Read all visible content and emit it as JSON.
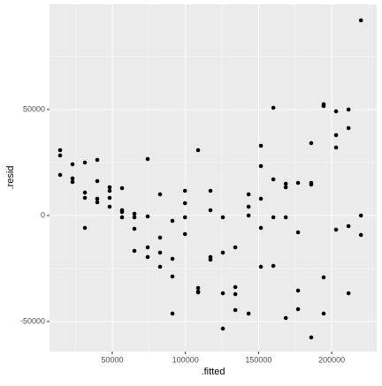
{
  "chart_data": {
    "type": "scatter",
    "x_label": ".fitted",
    "y_label": ".resid",
    "x": [
      14330,
      14330,
      14330,
      22790,
      22790,
      22790,
      31260,
      31260,
      31260,
      31260,
      39720,
      39720,
      39720,
      39720,
      48190,
      48190,
      48190,
      48190,
      56650,
      56650,
      56650,
      56650,
      65120,
      65120,
      65120,
      65120,
      74190,
      74190,
      74190,
      74190,
      82650,
      82650,
      82650,
      82650,
      91120,
      91120,
      91120,
      91120,
      99700,
      99700,
      99700,
      99700,
      108670,
      108670,
      108670,
      108670,
      117100,
      117100,
      117100,
      117100,
      125600,
      125600,
      125600,
      125600,
      134100,
      134100,
      134100,
      134100,
      143180,
      143180,
      143180,
      143180,
      151600,
      151600,
      151600,
      151600,
      151600,
      160100,
      160100,
      160100,
      160100,
      168600,
      168600,
      168600,
      168600,
      177000,
      177000,
      177000,
      177000,
      186000,
      186000,
      186000,
      186000,
      194500,
      194500,
      194500,
      194500,
      203000,
      203000,
      203000,
      203000,
      211500,
      211500,
      211500,
      211500,
      220000,
      220000,
      220000
    ],
    "y": [
      30833,
      28333,
      19167,
      24167,
      17500,
      15833,
      25000,
      10833,
      8333,
      -5833,
      26250,
      16250,
      7917,
      6250,
      13333,
      11667,
      8333,
      4167,
      12917,
      2500,
      1667,
      -833,
      833,
      -833,
      -6250,
      -16667,
      26667,
      -417,
      -15000,
      -19583,
      10000,
      -10417,
      -17500,
      -24167,
      -2500,
      -20417,
      -28750,
      -46250,
      11667,
      5833,
      -833,
      -8750,
      30833,
      -34167,
      -35833,
      -36250,
      11667,
      2500,
      -19583,
      -20833,
      -833,
      -17500,
      -36667,
      -53333,
      -15000,
      -33750,
      -37083,
      -44583,
      10000,
      4167,
      0,
      -46250,
      32917,
      23333,
      7917,
      -5833,
      -24167,
      50833,
      17083,
      -833,
      -23750,
      15000,
      13333,
      -833,
      -48333,
      15417,
      -7917,
      -35417,
      -44167,
      34167,
      15417,
      14583,
      -57500,
      52500,
      51667,
      -29167,
      -46250,
      49167,
      37917,
      32083,
      -6667,
      50000,
      41250,
      -5000,
      -36667,
      92083,
      0,
      -9167
    ],
    "color": "#000000",
    "xlim": [
      7070,
      230770
    ],
    "ylim": [
      -64167,
      99583
    ],
    "xticks": [
      50000,
      100000,
      150000,
      200000
    ],
    "yticks": [
      -50000,
      0,
      50000
    ],
    "grid": true
  }
}
